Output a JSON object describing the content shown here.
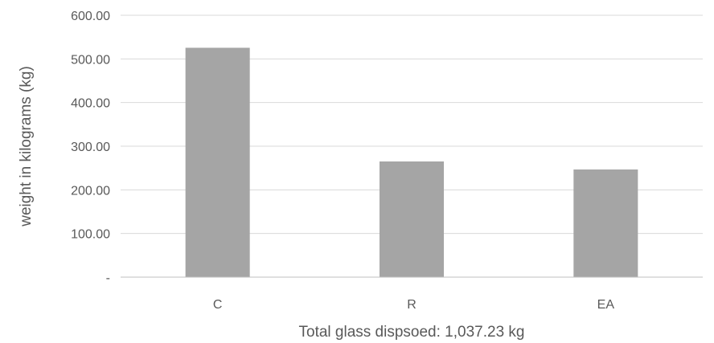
{
  "chart_data": {
    "type": "bar",
    "title": "",
    "categories": [
      "C",
      "R",
      "EA"
    ],
    "values": [
      525.5,
      265.0,
      246.7
    ],
    "ylabel": "weight in kilograms (kg)",
    "xlabel": "Total glass dispsoed: 1,037.23 kg",
    "ylim": [
      0,
      600
    ],
    "yticks": [
      0,
      100,
      200,
      300,
      400,
      500,
      600
    ],
    "ytick_labels": [
      "-",
      "100.00",
      "200.00",
      "300.00",
      "400.00",
      "500.00",
      "600.00"
    ],
    "bar_color": "#a5a5a5",
    "grid": true,
    "legend": "none"
  }
}
